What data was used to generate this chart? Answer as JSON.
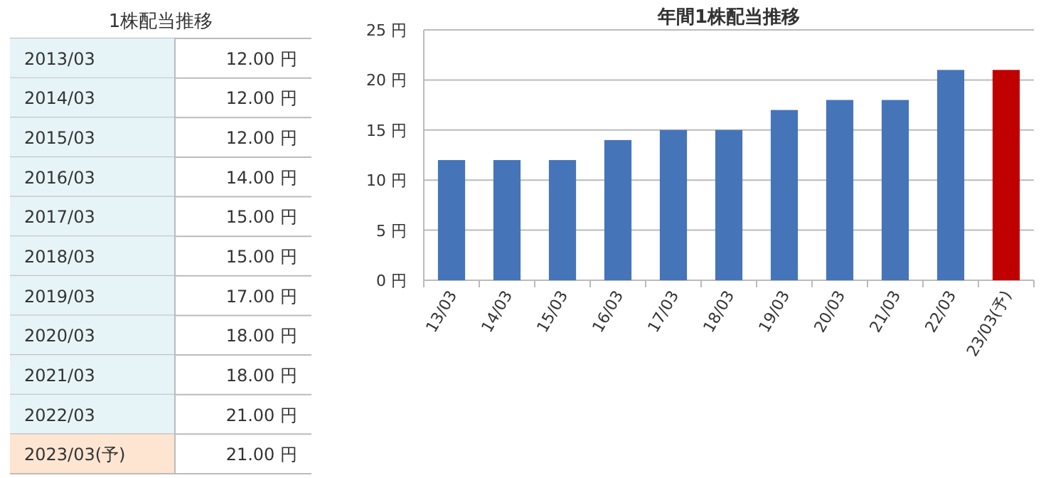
{
  "chart_data": [
    {
      "type": "other",
      "title": "1株配当推移",
      "categories": [
        "2013/03",
        "2014/03",
        "2015/03",
        "2016/03",
        "2017/03",
        "2018/03",
        "2019/03",
        "2020/03",
        "2021/03",
        "2022/03",
        "2023/03(予)"
      ],
      "value_labels": [
        "12.00 円",
        "12.00 円",
        "12.00 円",
        "14.00 円",
        "15.00 円",
        "15.00 円",
        "17.00 円",
        "18.00 円",
        "18.00 円",
        "21.00 円",
        "21.00 円"
      ],
      "colors": [
        "#e6f4f8",
        "#e6f4f8",
        "#e6f4f8",
        "#e6f4f8",
        "#e6f4f8",
        "#e6f4f8",
        "#e6f4f8",
        "#e6f4f8",
        "#e6f4f8",
        "#e6f4f8",
        "#fde5d2"
      ]
    },
    {
      "type": "bar",
      "title": "年間1株配当推移",
      "categories": [
        "13/03",
        "14/03",
        "15/03",
        "16/03",
        "17/03",
        "18/03",
        "19/03",
        "20/03",
        "21/03",
        "22/03",
        "23/03(予)"
      ],
      "values": [
        12,
        12,
        12,
        14,
        15,
        15,
        17,
        18,
        18,
        21,
        21
      ],
      "colors": [
        "#4674b8",
        "#4674b8",
        "#4674b8",
        "#4674b8",
        "#4674b8",
        "#4674b8",
        "#4674b8",
        "#4674b8",
        "#4674b8",
        "#4674b8",
        "#c00000"
      ],
      "ylim": [
        0,
        25
      ],
      "yticks": [
        {
          "value": 0,
          "label": "0 円"
        },
        {
          "value": 5,
          "label": "5 円"
        },
        {
          "value": 10,
          "label": "10 円"
        },
        {
          "value": 15,
          "label": "15 円"
        },
        {
          "value": 20,
          "label": "20 円"
        },
        {
          "value": 25,
          "label": "25 円"
        }
      ],
      "grid": "y"
    }
  ]
}
